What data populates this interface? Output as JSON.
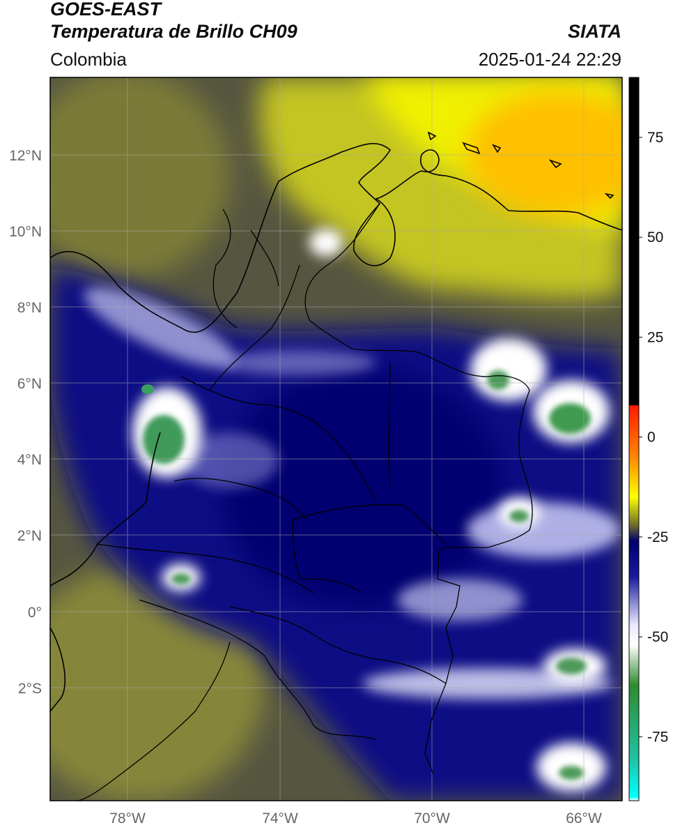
{
  "header": {
    "satellite": "GOES-EAST",
    "product": "Temperatura de Brillo CH09",
    "brand": "SIATA",
    "region": "Colombia",
    "timestamp": "2025-01-24 22:29"
  },
  "axes": {
    "lat_labels": [
      "12°N",
      "10°N",
      "8°N",
      "6°N",
      "4°N",
      "2°N",
      "0°",
      "2°S"
    ],
    "lon_labels": [
      "78°W",
      "74°W",
      "70°W",
      "66°W"
    ]
  },
  "colorbar": {
    "ticks": [
      "75",
      "50",
      "25",
      "0",
      "-25",
      "-50",
      "-75"
    ],
    "stops": [
      {
        "value": 90,
        "color": "#000000"
      },
      {
        "value": 8,
        "color": "#000000"
      },
      {
        "value": 7.9,
        "color": "#ff1a00"
      },
      {
        "value": -5,
        "color": "#ff8800"
      },
      {
        "value": -15,
        "color": "#ffff00"
      },
      {
        "value": -22,
        "color": "#6e6e2a"
      },
      {
        "value": -26,
        "color": "#000070"
      },
      {
        "value": -35,
        "color": "#1a1a9a"
      },
      {
        "value": -47,
        "color": "#e8e8ff"
      },
      {
        "value": -52,
        "color": "#ffffff"
      },
      {
        "value": -62,
        "color": "#2e8b2e"
      },
      {
        "value": -80,
        "color": "#20c0a0"
      },
      {
        "value": -90,
        "color": "#00ffff"
      },
      {
        "value": -91,
        "color": "#ffffff"
      }
    ]
  },
  "colors": {
    "cold_cloud": "#ffffff",
    "deep_cloud": "#3aa060",
    "dry_air": "#e8e800",
    "moist_air": "#7c7c30",
    "mid_cloud": "#0a0a80"
  }
}
